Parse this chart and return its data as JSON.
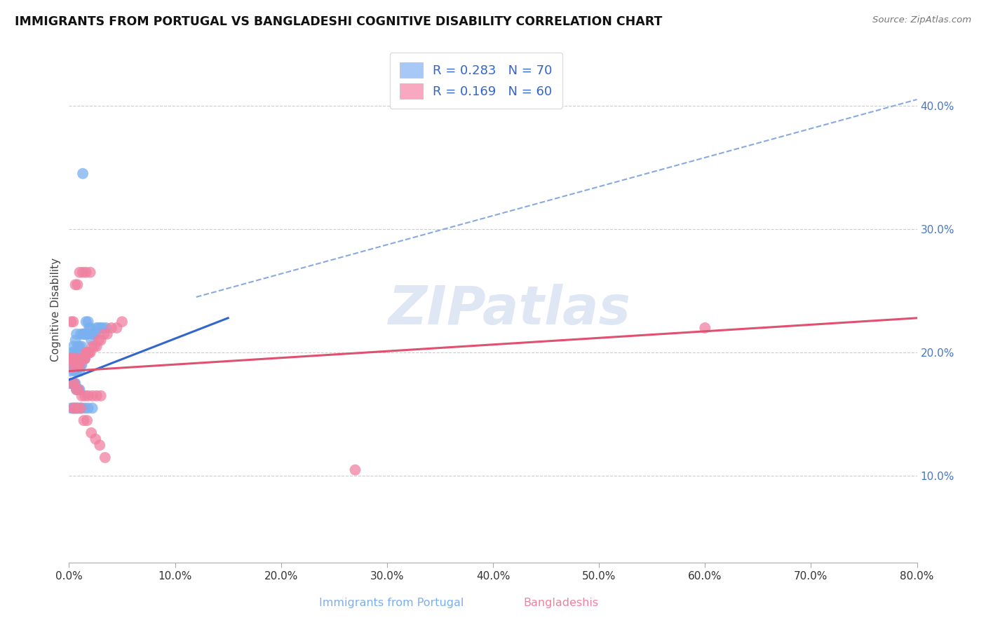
{
  "title": "IMMIGRANTS FROM PORTUGAL VS BANGLADESHI COGNITIVE DISABILITY CORRELATION CHART",
  "source": "Source: ZipAtlas.com",
  "xlim": [
    0.0,
    0.8
  ],
  "ylim": [
    0.03,
    0.44
  ],
  "watermark": "ZIPatlas",
  "legend_label1": "R = 0.283   N = 70",
  "legend_label2": "R = 0.169   N = 60",
  "legend_color1": "#a8c8f8",
  "legend_color2": "#f8a8c0",
  "scatter_color1": "#7ab0f0",
  "scatter_color2": "#f080a0",
  "trendline1_color": "#3366cc",
  "trendline2_color": "#e05070",
  "trendline_dashed_color": "#88aadd",
  "ylabel": "Cognitive Disability",
  "bottom_label1": "Immigrants from Portugal",
  "bottom_label2": "Bangladeshis",
  "portugal_x": [
    0.001,
    0.002,
    0.003,
    0.003,
    0.004,
    0.004,
    0.005,
    0.005,
    0.005,
    0.006,
    0.006,
    0.006,
    0.007,
    0.007,
    0.007,
    0.008,
    0.008,
    0.008,
    0.009,
    0.009,
    0.01,
    0.01,
    0.01,
    0.011,
    0.011,
    0.012,
    0.012,
    0.012,
    0.013,
    0.013,
    0.014,
    0.014,
    0.015,
    0.015,
    0.016,
    0.016,
    0.017,
    0.018,
    0.019,
    0.02,
    0.021,
    0.022,
    0.023,
    0.024,
    0.025,
    0.026,
    0.028,
    0.03,
    0.032,
    0.035,
    0.001,
    0.002,
    0.003,
    0.004,
    0.005,
    0.006,
    0.007,
    0.008,
    0.009,
    0.01,
    0.002,
    0.004,
    0.006,
    0.008,
    0.01,
    0.012,
    0.015,
    0.018,
    0.022,
    0.013
  ],
  "portugal_y": [
    0.185,
    0.195,
    0.19,
    0.2,
    0.195,
    0.205,
    0.185,
    0.195,
    0.2,
    0.19,
    0.195,
    0.21,
    0.185,
    0.2,
    0.215,
    0.19,
    0.195,
    0.205,
    0.19,
    0.2,
    0.185,
    0.195,
    0.205,
    0.19,
    0.215,
    0.19,
    0.195,
    0.205,
    0.195,
    0.215,
    0.195,
    0.215,
    0.195,
    0.215,
    0.215,
    0.225,
    0.215,
    0.225,
    0.22,
    0.22,
    0.21,
    0.215,
    0.215,
    0.215,
    0.215,
    0.22,
    0.22,
    0.22,
    0.22,
    0.22,
    0.175,
    0.175,
    0.175,
    0.175,
    0.175,
    0.175,
    0.17,
    0.17,
    0.17,
    0.17,
    0.155,
    0.155,
    0.155,
    0.155,
    0.155,
    0.155,
    0.155,
    0.155,
    0.155,
    0.345
  ],
  "bangladesh_x": [
    0.001,
    0.002,
    0.003,
    0.004,
    0.005,
    0.006,
    0.007,
    0.008,
    0.009,
    0.01,
    0.011,
    0.012,
    0.013,
    0.014,
    0.015,
    0.016,
    0.017,
    0.018,
    0.019,
    0.02,
    0.022,
    0.024,
    0.026,
    0.028,
    0.03,
    0.033,
    0.036,
    0.04,
    0.045,
    0.05,
    0.003,
    0.005,
    0.007,
    0.009,
    0.012,
    0.015,
    0.018,
    0.022,
    0.026,
    0.03,
    0.004,
    0.006,
    0.008,
    0.011,
    0.014,
    0.017,
    0.021,
    0.025,
    0.029,
    0.034,
    0.002,
    0.004,
    0.006,
    0.008,
    0.01,
    0.013,
    0.016,
    0.02,
    0.6,
    0.27
  ],
  "bangladesh_y": [
    0.195,
    0.195,
    0.195,
    0.19,
    0.195,
    0.19,
    0.195,
    0.19,
    0.19,
    0.19,
    0.195,
    0.195,
    0.195,
    0.195,
    0.195,
    0.2,
    0.2,
    0.2,
    0.2,
    0.2,
    0.205,
    0.205,
    0.205,
    0.21,
    0.21,
    0.215,
    0.215,
    0.22,
    0.22,
    0.225,
    0.175,
    0.175,
    0.17,
    0.17,
    0.165,
    0.165,
    0.165,
    0.165,
    0.165,
    0.165,
    0.155,
    0.155,
    0.155,
    0.155,
    0.145,
    0.145,
    0.135,
    0.13,
    0.125,
    0.115,
    0.225,
    0.225,
    0.255,
    0.255,
    0.265,
    0.265,
    0.265,
    0.265,
    0.22,
    0.105
  ],
  "trendline1_x0": 0.0,
  "trendline1_y0": 0.178,
  "trendline1_x1": 0.15,
  "trendline1_y1": 0.228,
  "trendline2_x0": 0.0,
  "trendline2_y0": 0.185,
  "trendline2_x1": 0.8,
  "trendline2_y1": 0.228,
  "trendline_dash_x0": 0.12,
  "trendline_dash_y0": 0.245,
  "trendline_dash_x1": 0.8,
  "trendline_dash_y1": 0.405
}
